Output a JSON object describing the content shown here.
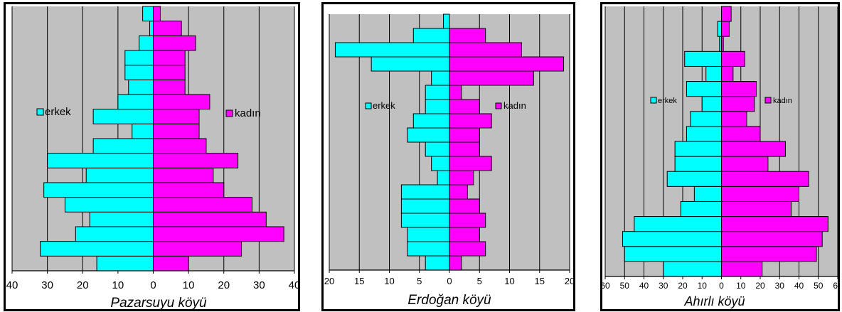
{
  "colors": {
    "male": "#00FFFF",
    "female": "#FF00FF",
    "plot_bg": "#C0C0C0",
    "bar_stroke": "#000000",
    "grid": "#000000"
  },
  "chart_data": [
    {
      "type": "bar",
      "orientation": "horizontal-population-pyramid",
      "title": "Pazarsuyu köyü",
      "xlim": [
        -40,
        40
      ],
      "ticks": [
        40,
        30,
        20,
        10,
        0,
        10,
        20,
        30,
        40
      ],
      "tick_values": [
        -40,
        -30,
        -20,
        -10,
        0,
        10,
        20,
        30,
        40
      ],
      "grid": true,
      "legend": {
        "male_label": "erkek",
        "female_label": "kadın"
      },
      "series": [
        {
          "name": "erkek",
          "values": [
            16,
            32,
            22,
            18,
            25,
            31,
            19,
            30,
            17,
            6,
            17,
            10,
            7,
            8,
            8,
            4,
            1,
            3
          ]
        },
        {
          "name": "kadın",
          "values": [
            10,
            25,
            37,
            32,
            28,
            20,
            17,
            24,
            15,
            13,
            13,
            16,
            9,
            9,
            9,
            12,
            8,
            2
          ]
        }
      ]
    },
    {
      "type": "bar",
      "orientation": "horizontal-population-pyramid",
      "title": "Erdoğan köyü",
      "xlim": [
        -20,
        20
      ],
      "ticks": [
        20,
        15,
        10,
        5,
        0,
        5,
        10,
        15,
        20
      ],
      "tick_values": [
        -20,
        -15,
        -10,
        -5,
        0,
        5,
        10,
        15,
        20
      ],
      "grid": true,
      "legend": {
        "male_label": "erkek",
        "female_label": "kadın"
      },
      "series": [
        {
          "name": "erkek",
          "values": [
            4,
            7,
            7,
            8,
            8,
            8,
            2,
            3,
            4,
            7,
            6,
            4,
            4,
            3,
            13,
            19,
            6,
            1
          ]
        },
        {
          "name": "kadın",
          "values": [
            2,
            6,
            5,
            6,
            5,
            3,
            4,
            7,
            5,
            5,
            7,
            5,
            2,
            14,
            19,
            12,
            6,
            0
          ]
        }
      ]
    },
    {
      "type": "bar",
      "orientation": "horizontal-population-pyramid",
      "title": "Ahırlı köyü",
      "xlim": [
        -60,
        60
      ],
      "ticks": [
        60,
        50,
        40,
        30,
        20,
        10,
        0,
        10,
        20,
        30,
        40,
        50,
        60
      ],
      "tick_values": [
        -60,
        -50,
        -40,
        -30,
        -20,
        -10,
        0,
        10,
        20,
        30,
        40,
        50,
        60
      ],
      "grid": true,
      "legend": {
        "male_label": "erkek",
        "female_label": "kadın"
      },
      "series": [
        {
          "name": "erkek",
          "values": [
            30,
            50,
            51,
            45,
            21,
            14,
            28,
            24,
            24,
            18,
            16,
            10,
            18,
            8,
            19,
            1,
            2,
            0
          ]
        },
        {
          "name": "kadın",
          "values": [
            21,
            49,
            52,
            55,
            36,
            40,
            45,
            24,
            33,
            20,
            13,
            17,
            18,
            6,
            12,
            1,
            4,
            5
          ]
        }
      ]
    }
  ]
}
